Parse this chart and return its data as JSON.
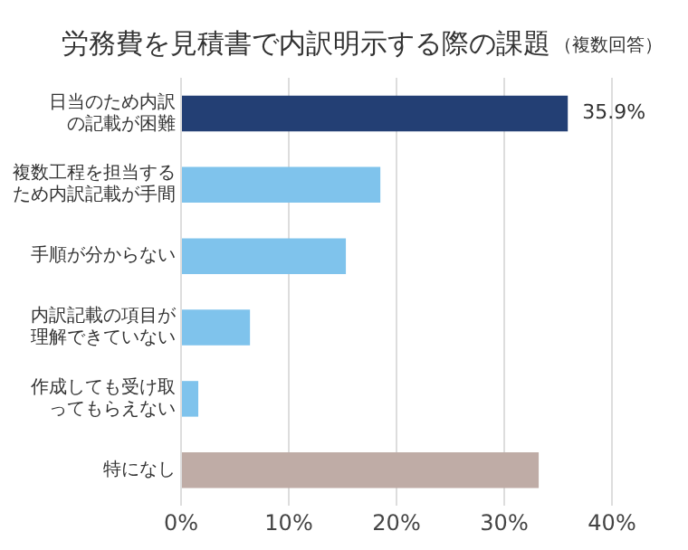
{
  "chart_data": {
    "type": "bar",
    "orientation": "horizontal",
    "title": "労務費を見積書で内訳明示する際の課題",
    "subtitle": "（複数回答）",
    "categories": [
      "日当のため内訳の記載が困難",
      "複数工程を担当するため内訳記載が手間",
      "手順が分からない",
      "内訳記載の項目が理解できていない",
      "作成しても受け取ってもらえない",
      "特になし"
    ],
    "values": [
      35.9,
      18.5,
      15.3,
      6.4,
      1.6,
      33.2
    ],
    "colors": [
      "#233f74",
      "#7fc3ec",
      "#7fc3ec",
      "#7fc3ec",
      "#7fc3ec",
      "#bfaca6"
    ],
    "value_labels": [
      "35.9%",
      null,
      null,
      null,
      null,
      null
    ],
    "xlim": [
      0,
      40
    ],
    "xticks": [
      {
        "value": 0,
        "label": "0%"
      },
      {
        "value": 10,
        "label": "10%"
      },
      {
        "value": 20,
        "label": "20%"
      },
      {
        "value": 30,
        "label": "30%"
      },
      {
        "value": 40,
        "label": "40%"
      }
    ],
    "grid": "x",
    "legend": false
  }
}
